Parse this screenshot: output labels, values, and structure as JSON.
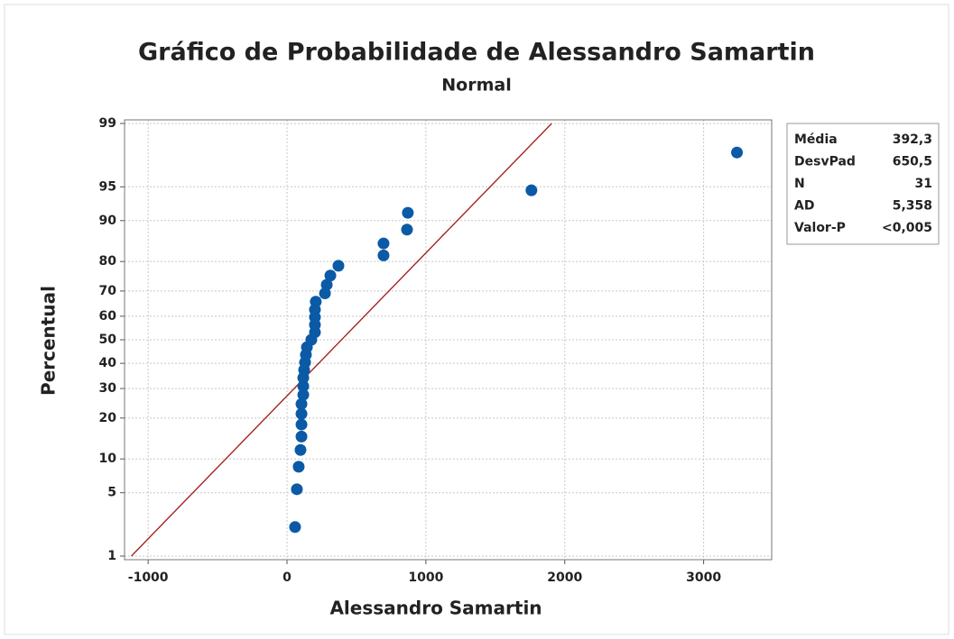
{
  "chart_data": {
    "type": "probability",
    "title": "Gráfico de Probabilidade de Alessandro Samartin",
    "subtitle": "Normal",
    "x_label": "Alessandro Samartin",
    "y_label": "Percentual",
    "y_scale": "normal",
    "x": [
      58,
      71,
      84,
      97,
      104,
      104,
      104,
      104,
      117,
      117,
      117,
      123,
      130,
      136,
      143,
      175,
      201,
      201,
      201,
      201,
      207,
      273,
      286,
      312,
      370,
      695,
      695,
      864,
      870,
      1760,
      3240
    ],
    "values": [
      2.2,
      5.4,
      8.6,
      11.8,
      14.9,
      18.1,
      21.3,
      24.5,
      27.7,
      30.9,
      34.1,
      37.3,
      40.4,
      43.6,
      46.8,
      50.0,
      53.2,
      56.4,
      59.6,
      62.7,
      65.9,
      69.1,
      72.3,
      75.5,
      78.7,
      81.8,
      85.0,
      88.2,
      91.4,
      94.6,
      97.8
    ],
    "color": "#0b5aa6",
    "line_color": "#a3201c",
    "xlim": [
      -1170,
      3490
    ],
    "xticks": [
      -1000,
      0,
      1000,
      2000,
      3000
    ],
    "ylim": [
      1,
      99
    ],
    "yticks": [
      1,
      5,
      10,
      20,
      30,
      40,
      50,
      60,
      70,
      80,
      90,
      95,
      99
    ],
    "grid": true,
    "stats": [
      {
        "name": "Média",
        "value": 392.3,
        "label": "392,3"
      },
      {
        "name": "DesvPad",
        "value": 650.5,
        "label": "650,5"
      },
      {
        "name": "N",
        "value": 31,
        "label": "31"
      },
      {
        "name": "AD",
        "value": 5.358,
        "label": "5,358"
      },
      {
        "name": "Valor-P",
        "value": 0.005,
        "label": "<0,005"
      }
    ]
  }
}
